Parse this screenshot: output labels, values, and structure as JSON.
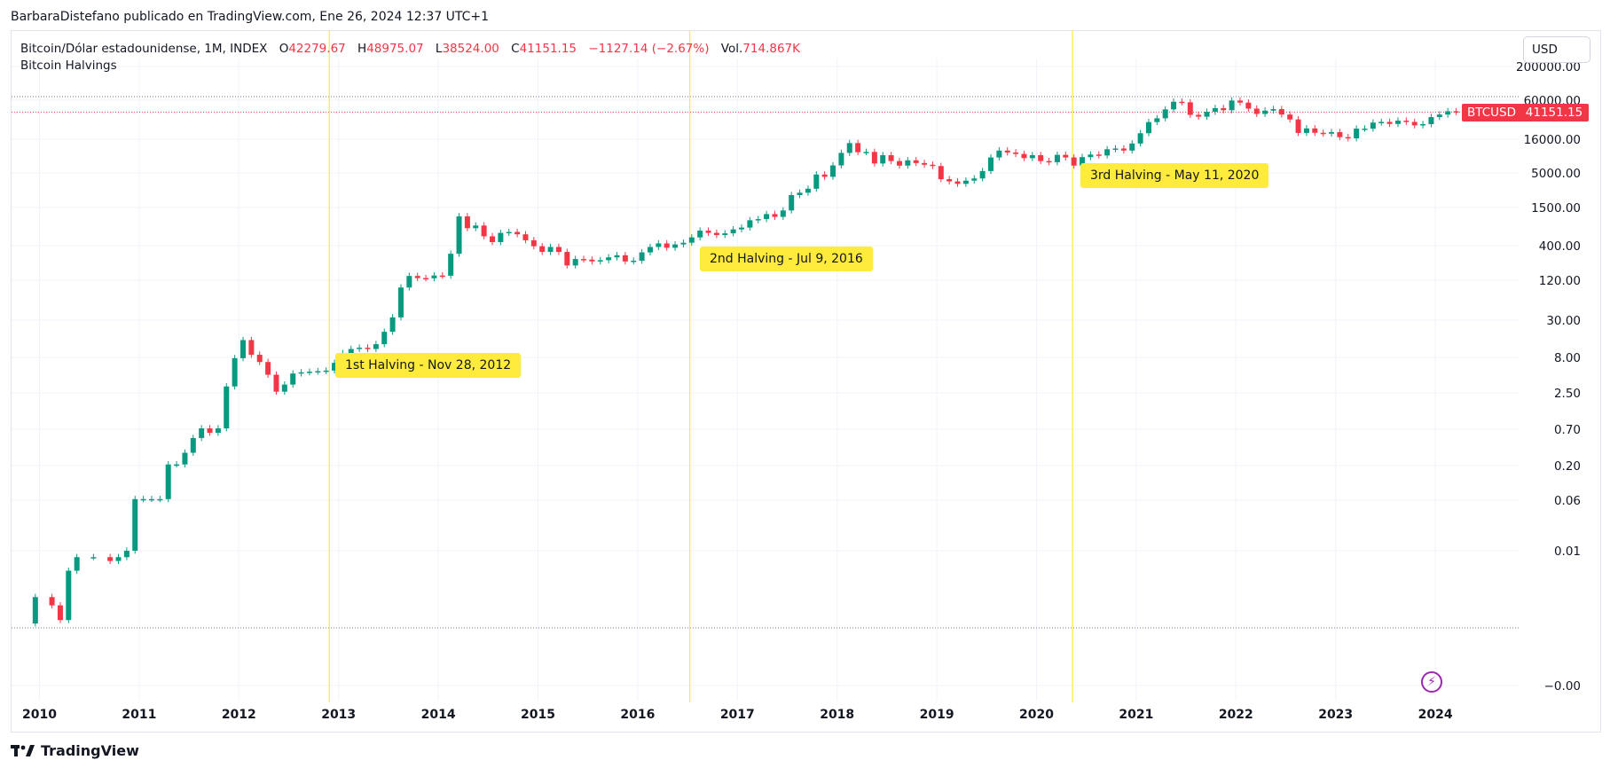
{
  "publisher": "BarbaraDistefano publicado en TradingView.com, Ene 26, 2024 12:37 UTC+1",
  "legend": {
    "symbol": "Bitcoin/Dólar estadounidense, 1M, INDEX",
    "o_label": "O",
    "o_value": "42279.67",
    "h_label": "H",
    "h_value": "48975.07",
    "l_label": "L",
    "l_value": "38524.00",
    "c_label": "C",
    "c_value": "41151.15",
    "change": "−1127.14 (−2.67%)",
    "vol_label": "Vol.",
    "vol_value": "714.867K",
    "indicator": "Bitcoin Halvings"
  },
  "toolbar": {
    "currency": "USD"
  },
  "price_tags": {
    "ticker": "BTCUSD",
    "last": "41151.15"
  },
  "brand": {
    "name": "TradingView"
  },
  "colors": {
    "up": "#089981",
    "down": "#f23645",
    "halving": "#ffeb3b",
    "grid": "#f0f3fa",
    "accent": "#9c27b0"
  },
  "icons": {
    "flash": "lightning-bolt-icon",
    "logo": "tradingview-logo-icon"
  },
  "chart_data": {
    "type": "candlestick",
    "scale": "log",
    "interval": "1M",
    "ticker": "BTCUSD",
    "y_ticks": [
      "200000.00",
      "60000.00",
      "16000.00",
      "5000.00",
      "1500.00",
      "400.00",
      "120.00",
      "30.00",
      "8.00",
      "2.50",
      "0.70",
      "0.20",
      "0.06",
      "0.01",
      "−0.00"
    ],
    "x_ticks": [
      "2010",
      "2011",
      "2012",
      "2013",
      "2014",
      "2015",
      "2016",
      "2017",
      "2018",
      "2019",
      "2020",
      "2021",
      "2022",
      "2023",
      "2024"
    ],
    "halvings": [
      {
        "date": "2012-11-28",
        "label": "1st Halving - Nov 28, 2012"
      },
      {
        "date": "2016-07-09",
        "label": "2nd Halving - Jul 9, 2016"
      },
      {
        "date": "2020-05-11",
        "label": "3rd Halving - May 11, 2020"
      }
    ],
    "last_close": 41151.15,
    "points": [
      [
        "2009-12",
        0.0008,
        0.002
      ],
      [
        "2010-02",
        0.002,
        0.0015
      ],
      [
        "2010-03",
        0.0015,
        0.0009
      ],
      [
        "2010-04",
        0.0009,
        0.005
      ],
      [
        "2010-05",
        0.005,
        0.008
      ],
      [
        "2010-07",
        0.008,
        0.008
      ],
      [
        "2010-09",
        0.008,
        0.007
      ],
      [
        "2010-10",
        0.007,
        0.008
      ],
      [
        "2010-11",
        0.008,
        0.01
      ],
      [
        "2010-12",
        0.01,
        0.06
      ],
      [
        "2011-01",
        0.06,
        0.06
      ],
      [
        "2011-02",
        0.06,
        0.06
      ],
      [
        "2011-03",
        0.06,
        0.06
      ],
      [
        "2011-04",
        0.06,
        0.2
      ],
      [
        "2011-05",
        0.2,
        0.2
      ],
      [
        "2011-06",
        0.2,
        0.3
      ],
      [
        "2011-07",
        0.3,
        0.5
      ],
      [
        "2011-08",
        0.5,
        0.7
      ],
      [
        "2011-09",
        0.7,
        0.6
      ],
      [
        "2011-10",
        0.6,
        0.7
      ],
      [
        "2011-11",
        0.7,
        3.0
      ],
      [
        "2011-12",
        3.0,
        8.0
      ],
      [
        "2012-01",
        8.0,
        15.0
      ],
      [
        "2012-02",
        15.0,
        9.0
      ],
      [
        "2012-03",
        9.0,
        7.0
      ],
      [
        "2012-04",
        7.0,
        4.5
      ],
      [
        "2012-05",
        4.5,
        2.5
      ],
      [
        "2012-06",
        2.5,
        3.2
      ],
      [
        "2012-07",
        3.2,
        4.7
      ],
      [
        "2012-08",
        4.7,
        4.9
      ],
      [
        "2012-09",
        4.9,
        5.0
      ],
      [
        "2012-10",
        5.0,
        5.1
      ],
      [
        "2012-11",
        5.1,
        5.2
      ],
      [
        "2012-12",
        5.2,
        6.8
      ],
      [
        "2013-01",
        6.8,
        9.5
      ],
      [
        "2013-02",
        9.5,
        11.0
      ],
      [
        "2013-03",
        11.0,
        11.5
      ],
      [
        "2013-04",
        11.5,
        11.0
      ],
      [
        "2013-05",
        11.0,
        13.0
      ],
      [
        "2013-06",
        13.0,
        20.0
      ],
      [
        "2013-07",
        20.0,
        33.0
      ],
      [
        "2013-08",
        33.0,
        93.0
      ],
      [
        "2013-09",
        93.0,
        139.0
      ],
      [
        "2013-10",
        139.0,
        129.0
      ],
      [
        "2013-11",
        129.0,
        128.0
      ],
      [
        "2013-12",
        128.0,
        141.0
      ],
      [
        "2014-01",
        141.0,
        140.0
      ],
      [
        "2014-02",
        140.0,
        300.0
      ],
      [
        "2014-03",
        300.0,
        1100.0
      ],
      [
        "2014-04",
        1100.0,
        730.0
      ],
      [
        "2014-05",
        730.0,
        800.0
      ],
      [
        "2014-06",
        800.0,
        550.0
      ],
      [
        "2014-07",
        550.0,
        450.0
      ],
      [
        "2014-08",
        450.0,
        620.0
      ],
      [
        "2014-09",
        620.0,
        640.0
      ],
      [
        "2014-10",
        640.0,
        590.0
      ],
      [
        "2014-11",
        590.0,
        480.0
      ],
      [
        "2014-12",
        480.0,
        390.0
      ],
      [
        "2015-01",
        390.0,
        320.0
      ],
      [
        "2015-02",
        320.0,
        380.0
      ],
      [
        "2015-03",
        380.0,
        320.0
      ],
      [
        "2015-04",
        320.0,
        200.0
      ],
      [
        "2015-05",
        200.0,
        250.0
      ],
      [
        "2015-06",
        250.0,
        245.0
      ],
      [
        "2015-07",
        245.0,
        230.0
      ],
      [
        "2015-08",
        230.0,
        240.0
      ],
      [
        "2015-09",
        240.0,
        265.0
      ],
      [
        "2015-10",
        265.0,
        285.0
      ],
      [
        "2015-11",
        285.0,
        230.0
      ],
      [
        "2015-12",
        230.0,
        236.0
      ],
      [
        "2016-01",
        236.0,
        315.0
      ],
      [
        "2016-02",
        315.0,
        380.0
      ],
      [
        "2016-03",
        380.0,
        430.0
      ],
      [
        "2016-04",
        430.0,
        370.0
      ],
      [
        "2016-05",
        370.0,
        415.0
      ],
      [
        "2016-06",
        415.0,
        440.0
      ],
      [
        "2016-07",
        440.0,
        530.0
      ],
      [
        "2016-08",
        530.0,
        670.0
      ],
      [
        "2016-09",
        670.0,
        620.0
      ],
      [
        "2016-10",
        620.0,
        575.0
      ],
      [
        "2016-11",
        575.0,
        610.0
      ],
      [
        "2016-12",
        610.0,
        700.0
      ],
      [
        "2017-01",
        700.0,
        745.0
      ],
      [
        "2017-02",
        745.0,
        960.0
      ],
      [
        "2017-03",
        960.0,
        1000.0
      ],
      [
        "2017-04",
        1000.0,
        1190.0
      ],
      [
        "2017-05",
        1190.0,
        1080.0
      ],
      [
        "2017-06",
        1080.0,
        1350.0
      ],
      [
        "2017-07",
        1350.0,
        2300.0
      ],
      [
        "2017-08",
        2300.0,
        2500.0
      ],
      [
        "2017-09",
        2500.0,
        2870.0
      ],
      [
        "2017-10",
        2870.0,
        4700.0
      ],
      [
        "2017-11",
        4700.0,
        4340.0
      ],
      [
        "2017-12",
        4340.0,
        6450.0
      ],
      [
        "2018-01",
        6450.0,
        9950.0
      ],
      [
        "2018-02",
        9950.0,
        14000.0
      ],
      [
        "2018-03",
        14000.0,
        10200.0
      ],
      [
        "2018-04",
        10200.0,
        10300.0
      ],
      [
        "2018-05",
        10300.0,
        6900.0
      ],
      [
        "2018-06",
        6900.0,
        9200.0
      ],
      [
        "2018-07",
        9200.0,
        7500.0
      ],
      [
        "2018-08",
        7500.0,
        6400.0
      ],
      [
        "2018-09",
        6400.0,
        7700.0
      ],
      [
        "2018-10",
        7700.0,
        7000.0
      ],
      [
        "2018-11",
        7000.0,
        6600.0
      ],
      [
        "2018-12",
        6600.0,
        6300.0
      ],
      [
        "2019-01",
        6300.0,
        4000.0
      ],
      [
        "2019-02",
        4000.0,
        3700.0
      ],
      [
        "2019-03",
        3700.0,
        3400.0
      ],
      [
        "2019-04",
        3400.0,
        3800.0
      ],
      [
        "2019-05",
        3800.0,
        4100.0
      ],
      [
        "2019-06",
        4100.0,
        5300.0
      ],
      [
        "2019-07",
        5300.0,
        8500.0
      ],
      [
        "2019-08",
        8500.0,
        10800.0
      ],
      [
        "2019-09",
        10800.0,
        10100.0
      ],
      [
        "2019-10",
        10100.0,
        9600.0
      ],
      [
        "2019-11",
        9600.0,
        8300.0
      ],
      [
        "2019-12",
        8300.0,
        9200.0
      ],
      [
        "2020-01",
        9200.0,
        7500.0
      ],
      [
        "2020-02",
        7500.0,
        7200.0
      ],
      [
        "2020-03",
        7200.0,
        9300.0
      ],
      [
        "2020-04",
        9300.0,
        8500.0
      ],
      [
        "2020-05",
        8500.0,
        6400.0
      ],
      [
        "2020-06",
        6400.0,
        8600.0
      ],
      [
        "2020-07",
        8600.0,
        9400.0
      ],
      [
        "2020-08",
        9400.0,
        9100.0
      ],
      [
        "2020-09",
        9100.0,
        11300.0
      ],
      [
        "2020-10",
        11300.0,
        11600.0
      ],
      [
        "2020-11",
        11600.0,
        10800.0
      ],
      [
        "2020-12",
        10800.0,
        13800.0
      ],
      [
        "2021-01",
        13800.0,
        19700.0
      ],
      [
        "2021-02",
        19700.0,
        29000.0
      ],
      [
        "2021-03",
        29000.0,
        33100.0
      ],
      [
        "2021-04",
        33100.0,
        45100.0
      ],
      [
        "2021-05",
        45100.0,
        58800.0
      ],
      [
        "2021-06",
        58800.0,
        57700.0
      ],
      [
        "2021-07",
        57700.0,
        37300.0
      ],
      [
        "2021-08",
        37300.0,
        35000.0
      ],
      [
        "2021-09",
        35000.0,
        41500.0
      ],
      [
        "2021-10",
        41500.0,
        47100.0
      ],
      [
        "2021-11",
        47100.0,
        43800.0
      ],
      [
        "2021-12",
        43800.0,
        61300.0
      ],
      [
        "2022-01",
        61300.0,
        57000.0
      ],
      [
        "2022-02",
        57000.0,
        46300.0
      ],
      [
        "2022-03",
        46300.0,
        38500.0
      ],
      [
        "2022-04",
        38500.0,
        43200.0
      ],
      [
        "2022-05",
        43200.0,
        45500.0
      ],
      [
        "2022-06",
        45500.0,
        37700.0
      ],
      [
        "2022-07",
        37700.0,
        31800.0
      ],
      [
        "2022-08",
        31800.0,
        19900.0
      ],
      [
        "2022-09",
        19900.0,
        23300.0
      ],
      [
        "2022-10",
        23300.0,
        20000.0
      ],
      [
        "2022-11",
        20000.0,
        19400.0
      ],
      [
        "2022-12",
        19400.0,
        20500.0
      ],
      [
        "2023-01",
        20500.0,
        17200.0
      ],
      [
        "2023-02",
        17200.0,
        16500.0
      ],
      [
        "2023-03",
        16500.0,
        23100.0
      ],
      [
        "2023-04",
        23100.0,
        23100.0
      ],
      [
        "2023-05",
        23100.0,
        28500.0
      ],
      [
        "2023-06",
        28500.0,
        29200.0
      ],
      [
        "2023-07",
        29200.0,
        27200.0
      ],
      [
        "2023-08",
        27200.0,
        30500.0
      ],
      [
        "2023-09",
        30500.0,
        29200.0
      ],
      [
        "2023-10",
        29200.0,
        25900.0
      ],
      [
        "2023-11",
        25900.0,
        27000.0
      ],
      [
        "2023-12",
        27000.0,
        34500.0
      ],
      [
        "2024-01",
        34500.0,
        37700.0
      ],
      [
        "2024-02",
        37700.0,
        42300.0
      ],
      [
        "2024-03",
        42300.0,
        41151.15
      ]
    ]
  }
}
